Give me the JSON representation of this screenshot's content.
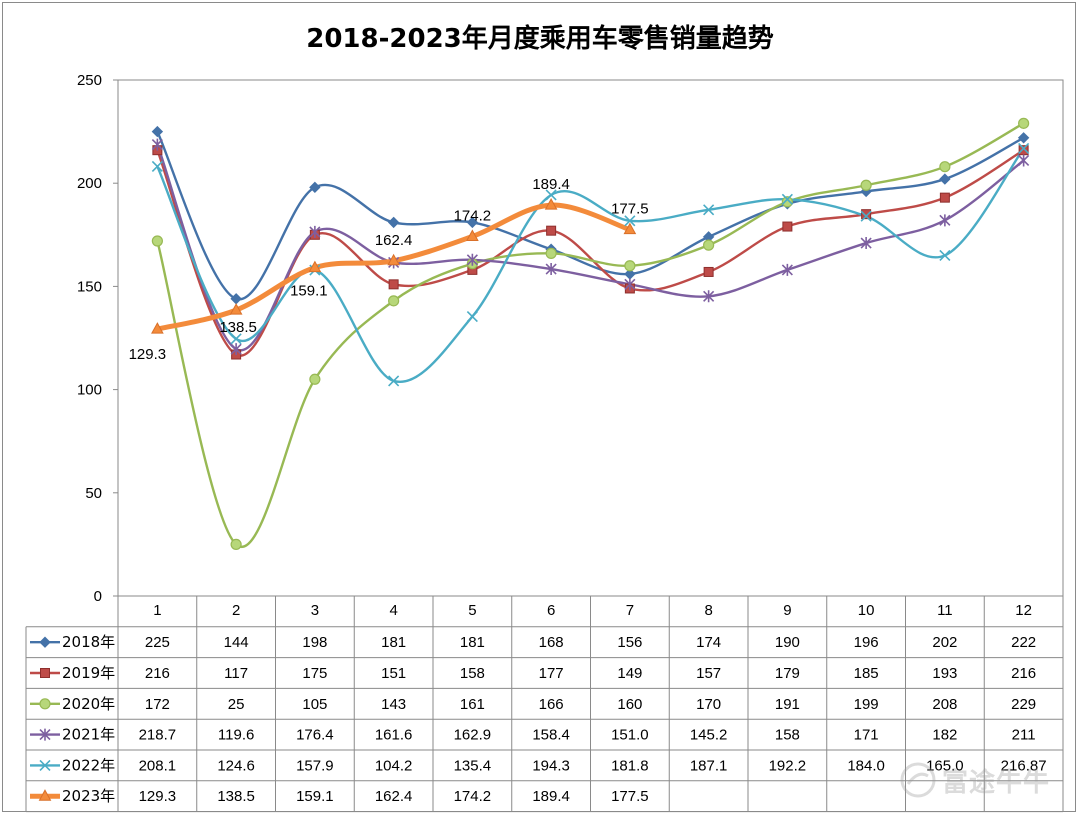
{
  "chart_data": {
    "type": "line",
    "title": "2018-2023年月度乘用车零售销量趋势",
    "categories": [
      "1",
      "2",
      "3",
      "4",
      "5",
      "6",
      "7",
      "8",
      "9",
      "10",
      "11",
      "12"
    ],
    "ylim": [
      0,
      250
    ],
    "yticks": [
      0,
      50,
      100,
      150,
      200,
      250
    ],
    "grid": false,
    "legend": "data table below the chart",
    "series": [
      {
        "name": "2018年",
        "color": "#4472a8",
        "marker": "diamond",
        "values": [
          225,
          144,
          198,
          181,
          181,
          168,
          156,
          174,
          190,
          196,
          202,
          222
        ],
        "table": [
          "225",
          "144",
          "198",
          "181",
          "181",
          "168",
          "156",
          "174",
          "190",
          "196",
          "202",
          "222"
        ]
      },
      {
        "name": "2019年",
        "color": "#be4b48",
        "marker": "square",
        "values": [
          216,
          117,
          175,
          151,
          158,
          177,
          149,
          157,
          179,
          185,
          193,
          216
        ],
        "table": [
          "216",
          "117",
          "175",
          "151",
          "158",
          "177",
          "149",
          "157",
          "179",
          "185",
          "193",
          "216"
        ]
      },
      {
        "name": "2020年",
        "color": "#98b954",
        "marker": "circle",
        "values": [
          172,
          25,
          105,
          143,
          161,
          166,
          160,
          170,
          191,
          199,
          208,
          229
        ],
        "table": [
          "172",
          "25",
          "105",
          "143",
          "161",
          "166",
          "160",
          "170",
          "191",
          "199",
          "208",
          "229"
        ]
      },
      {
        "name": "2021年",
        "color": "#7d5fa0",
        "marker": "star",
        "values": [
          218.7,
          119.6,
          176.4,
          161.6,
          162.9,
          158.4,
          151.0,
          145.2,
          158,
          171,
          182,
          211
        ],
        "table": [
          "218.7",
          "119.6",
          "176.4",
          "161.6",
          "162.9",
          "158.4",
          "151.0",
          "145.2",
          "158",
          "171",
          "182",
          "211"
        ]
      },
      {
        "name": "2022年",
        "color": "#4aacc5",
        "marker": "x",
        "values": [
          208.1,
          124.6,
          157.9,
          104.2,
          135.4,
          194.3,
          181.8,
          187.1,
          192.2,
          184.0,
          165.0,
          216.87
        ],
        "table": [
          "208.1",
          "124.6",
          "157.9",
          "104.2",
          "135.4",
          "194.3",
          "181.8",
          "187.1",
          "192.2",
          "184.0",
          "165.0",
          "216.87"
        ]
      },
      {
        "name": "2023年",
        "color": "#f38b3b",
        "marker": "triangle",
        "thick": true,
        "values": [
          129.3,
          138.5,
          159.1,
          162.4,
          174.2,
          189.4,
          177.5,
          null,
          null,
          null,
          null,
          null
        ],
        "table": [
          "129.3",
          "138.5",
          "159.1",
          "162.4",
          "174.2",
          "189.4",
          "177.5",
          "",
          "",
          "",
          "",
          ""
        ],
        "data_labels": [
          "129.3",
          "138.5",
          "159.1",
          "162.4",
          "174.2",
          "189.4",
          "177.5"
        ]
      }
    ]
  },
  "watermark": {
    "text": "富途牛牛"
  }
}
